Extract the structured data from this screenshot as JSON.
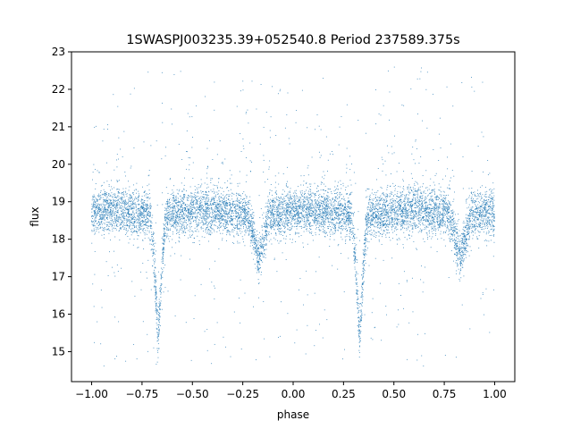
{
  "chart_data": {
    "type": "scatter",
    "title": "1SWASPJ003235.39+052540.8 Period 237589.375s",
    "xlabel": "phase",
    "ylabel": "flux",
    "xlim": [
      -1.1,
      1.1
    ],
    "ylim": [
      14.2,
      23.0
    ],
    "xticks": [
      -1.0,
      -0.75,
      -0.5,
      -0.25,
      0.0,
      0.25,
      0.5,
      0.75,
      1.0
    ],
    "xtick_labels": [
      "−1.00",
      "−0.75",
      "−0.50",
      "−0.25",
      "0.00",
      "0.25",
      "0.50",
      "0.75",
      "1.00"
    ],
    "yticks": [
      15,
      16,
      17,
      18,
      19,
      20,
      21,
      22,
      23
    ],
    "ytick_labels": [
      "15",
      "16",
      "17",
      "18",
      "19",
      "20",
      "21",
      "22",
      "23"
    ],
    "grid": false,
    "series": [
      {
        "color": "#1f77b4",
        "marker_size": "very small",
        "phase_range": [
          -1.0,
          1.0
        ],
        "baseline_flux": 18.7,
        "scatter_sd": 0.3,
        "primary_eclipse": {
          "phases": [
            -0.67,
            0.33
          ],
          "min_flux": 15.3
        },
        "secondary_eclipse": {
          "phases": [
            -0.17,
            0.83
          ],
          "min_flux": 17.5
        },
        "outlier_range": [
          14.6,
          22.6
        ]
      }
    ]
  }
}
